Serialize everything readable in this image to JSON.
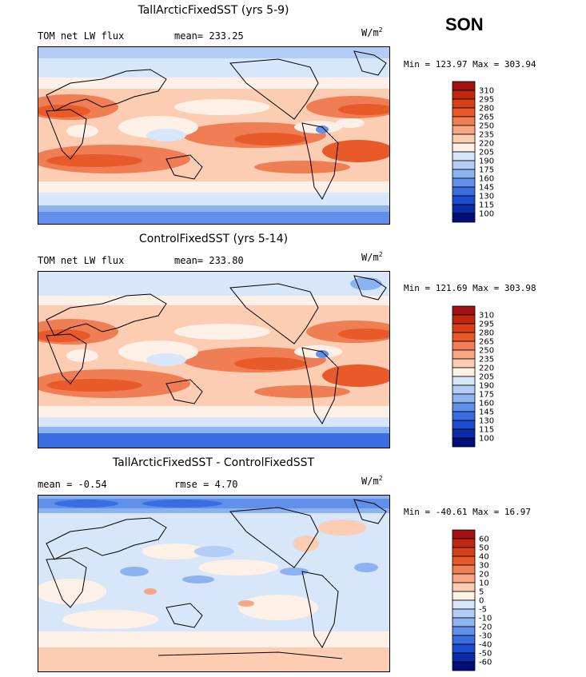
{
  "season": "SON",
  "panels": [
    {
      "title": "TallArcticFixedSST (yrs 5-9)",
      "left_text": "TOM net LW flux",
      "mid_text": "mean= 233.25",
      "unit": "W/m",
      "unit_exp": "2",
      "minmax": "Min = 123.97 Max = 303.94",
      "levels": [
        "310",
        "295",
        "280",
        "265",
        "250",
        "235",
        "220",
        "205",
        "190",
        "175",
        "160",
        "145",
        "130",
        "115",
        "100"
      ],
      "colors": [
        "#a01010",
        "#c0280e",
        "#d8401a",
        "#e85a2a",
        "#f07e54",
        "#f7a684",
        "#fcccb3",
        "#fdf0e6",
        "#d8e6fa",
        "#b4cdf6",
        "#8db2f0",
        "#6190ea",
        "#3a6ddf",
        "#1c4cd0",
        "#0b2aa8",
        "#030f78"
      ]
    },
    {
      "title": "ControlFixedSST (yrs 5-14)",
      "left_text": "TOM net LW flux",
      "mid_text": "mean= 233.80",
      "unit": "W/m",
      "unit_exp": "2",
      "minmax": "Min = 121.69 Max = 303.98",
      "levels": [
        "310",
        "295",
        "280",
        "265",
        "250",
        "235",
        "220",
        "205",
        "190",
        "175",
        "160",
        "145",
        "130",
        "115",
        "100"
      ],
      "colors": [
        "#a01010",
        "#c0280e",
        "#d8401a",
        "#e85a2a",
        "#f07e54",
        "#f7a684",
        "#fcccb3",
        "#fdf0e6",
        "#d8e6fa",
        "#b4cdf6",
        "#8db2f0",
        "#6190ea",
        "#3a6ddf",
        "#1c4cd0",
        "#0b2aa8",
        "#030f78"
      ]
    },
    {
      "title": "TallArcticFixedSST - ControlFixedSST",
      "left_text": "mean =   -0.54",
      "mid_text": "rmse =    4.70",
      "unit": "W/m",
      "unit_exp": "2",
      "minmax": "Min = -40.61 Max =  16.97",
      "levels": [
        "60",
        "50",
        "40",
        "30",
        "20",
        "10",
        "5",
        "0",
        "-5",
        "-10",
        "-20",
        "-30",
        "-40",
        "-50",
        "-60"
      ],
      "colors": [
        "#a01010",
        "#c0280e",
        "#d8401a",
        "#e85a2a",
        "#f07e54",
        "#f7a684",
        "#fcccb3",
        "#fdf0e6",
        "#d8e6fa",
        "#b4cdf6",
        "#8db2f0",
        "#6190ea",
        "#3a6ddf",
        "#1c4cd0",
        "#0b2aa8",
        "#030f78"
      ]
    }
  ]
}
